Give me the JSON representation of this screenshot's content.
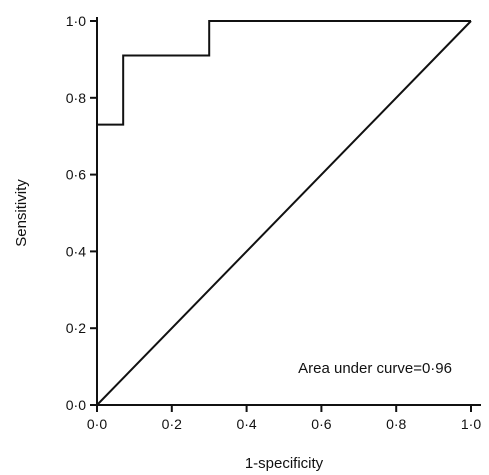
{
  "chart_data": {
    "type": "line",
    "title": "",
    "xlabel": "1-specificity",
    "ylabel": "Sensitivity",
    "xlim": [
      0,
      1
    ],
    "ylim": [
      0,
      1
    ],
    "grid": false,
    "legend": "none",
    "x_ticks": [
      "0·0",
      "0·2",
      "0·4",
      "0·6",
      "0·8",
      "1·0"
    ],
    "y_ticks": [
      "0·0",
      "0·2",
      "0·4",
      "0·6",
      "0·8",
      "1·0"
    ],
    "tick_values": [
      0,
      0.2,
      0.4,
      0.6,
      0.8,
      1.0
    ],
    "series": [
      {
        "x": [
          0.0,
          0.0,
          0.07,
          0.07,
          0.3,
          0.3,
          1.0
        ],
        "y": [
          0.0,
          0.73,
          0.73,
          0.91,
          0.91,
          1.0,
          1.0
        ]
      },
      {
        "x": [
          0.0,
          1.0
        ],
        "y": [
          0.0,
          1.0
        ]
      }
    ],
    "annotation": "Area under curve=0·96",
    "color": "#111111"
  }
}
